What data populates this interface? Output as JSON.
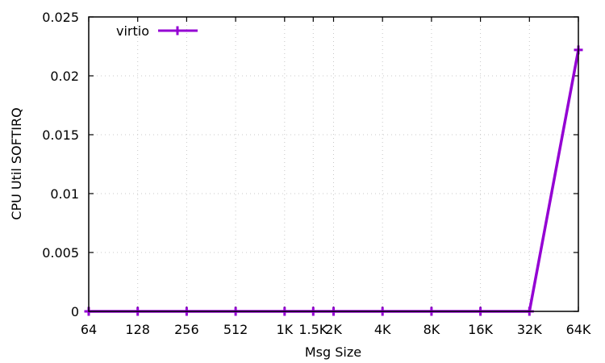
{
  "chart_data": {
    "type": "line",
    "title": "",
    "xlabel": "Msg Size",
    "ylabel": "CPU Util SOFTIRQ",
    "categories": [
      "64",
      "128",
      "256",
      "512",
      "1K",
      "1.5K",
      "2K",
      "4K",
      "8K",
      "16K",
      "32K",
      "64K"
    ],
    "x": [
      64,
      128,
      256,
      512,
      1024,
      1536,
      2048,
      4096,
      8192,
      16384,
      32768,
      65536
    ],
    "x_scale": "log2",
    "ylim": [
      0,
      0.025
    ],
    "yticks": [
      0,
      0.005,
      0.01,
      0.015,
      0.02,
      0.025
    ],
    "ytick_labels": [
      "0",
      "0.005",
      "0.01",
      "0.015",
      "0.02",
      "0.025"
    ],
    "grid": true,
    "legend_position": "top-left",
    "series": [
      {
        "name": "virtio",
        "color": "#9400d3",
        "marker": "plus",
        "values": [
          0,
          0,
          0,
          0,
          0,
          0,
          0,
          0,
          0,
          0,
          0,
          0.0222
        ]
      }
    ]
  }
}
